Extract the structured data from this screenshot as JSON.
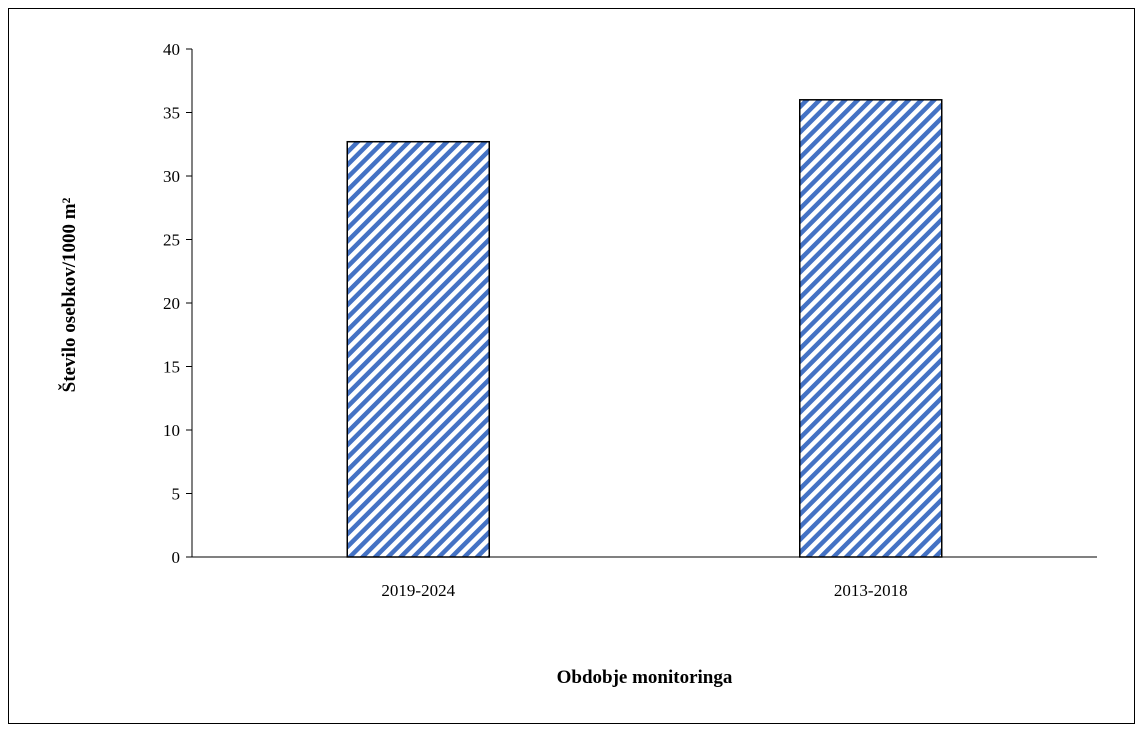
{
  "chart_data": {
    "type": "bar",
    "categories": [
      "2019-2024",
      "2013-2018"
    ],
    "values": [
      32.7,
      36.0
    ],
    "title": "",
    "xlabel": "Obdobje monitoringa",
    "ylabel": "Število osebkov/1000 m²",
    "ylim": [
      0,
      40
    ],
    "yticks": [
      0,
      5,
      10,
      15,
      20,
      25,
      30,
      35,
      40
    ],
    "grid": false,
    "legend": "none",
    "bar_fill": "hatched-diagonal",
    "colors": {
      "hatch": "#4472c4",
      "bar_border": "#000000",
      "axis": "#000000",
      "background": "#ffffff"
    }
  }
}
